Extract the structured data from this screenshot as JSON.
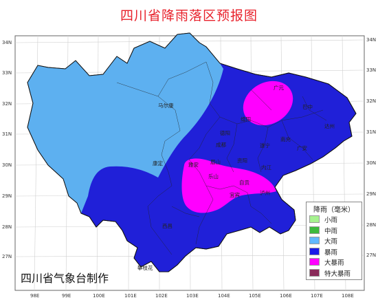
{
  "title": "四川省降雨落区预报图",
  "credit": "四川省气象台制作",
  "axes": {
    "left_lat": [
      "34N",
      "33N",
      "32N",
      "31N",
      "30N",
      "29N",
      "28N",
      "27N"
    ],
    "right_lat": [
      "34N",
      "33N",
      "32N",
      "31N",
      "30N",
      "29N",
      "28N",
      "27N"
    ],
    "lon": [
      "98E",
      "99E",
      "100E",
      "101E",
      "102E",
      "103E",
      "104E",
      "105E",
      "106E",
      "107E",
      "108E"
    ]
  },
  "places": {
    "maerkang": "马尔康",
    "kangding": "康定",
    "guangyuan": "广元",
    "bazhong": "巴中",
    "mianyang": "绵阳",
    "dazhou": "达州",
    "deyang": "德阳",
    "nanchong": "南充",
    "chengdu": "成都",
    "suining": "遂宁",
    "guangan": "广安",
    "yaan": "雅安",
    "meishan": "眉山",
    "ziyang": "资阳",
    "neijiang": "内江",
    "leshan": "乐山",
    "zigong": "自贡",
    "yibin": "宜宾",
    "luzhou": "泸州",
    "xichang": "西昌",
    "panzhihua": "攀枝花"
  },
  "legend": {
    "title": "降雨（毫米）",
    "items": [
      {
        "label": "小雨",
        "color": "#a6f28f"
      },
      {
        "label": "中雨",
        "color": "#3dba3d"
      },
      {
        "label": "大雨",
        "color": "#61b8ff"
      },
      {
        "label": "暴雨",
        "color": "#1a1ae8"
      },
      {
        "label": "大暴雨",
        "color": "#ff00ff"
      },
      {
        "label": "特大暴雨",
        "color": "#8a2a5a"
      }
    ]
  },
  "colors": {
    "heavy_rain": "#5db0f0",
    "rainstorm": "#2020d8",
    "severe_rainstorm": "#ff00ff",
    "title": "#e8202a"
  }
}
